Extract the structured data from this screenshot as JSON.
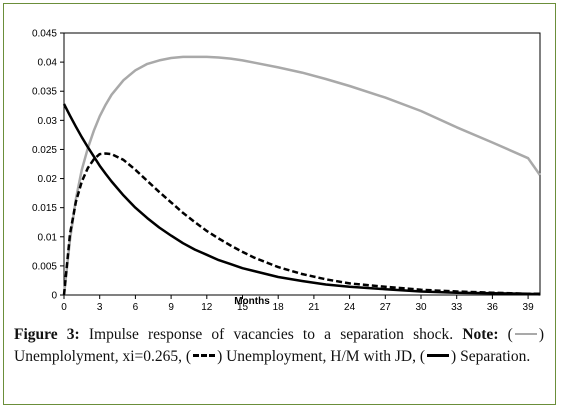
{
  "chart_data": {
    "type": "line",
    "xlabel": "Months",
    "ylabel": "",
    "xlim": [
      0,
      40
    ],
    "ylim": [
      0,
      0.045
    ],
    "xticks": [
      0,
      3,
      6,
      9,
      12,
      15,
      18,
      21,
      24,
      27,
      30,
      33,
      36,
      39
    ],
    "yticks": [
      0,
      0.005,
      0.01,
      0.015,
      0.02,
      0.025,
      0.03,
      0.035,
      0.04,
      0.045
    ],
    "ytick_labels": [
      "0",
      "0.005",
      "0.01",
      "0.015",
      "0.02",
      "0.025",
      "0.03",
      "0.035",
      "0.04",
      "0.045"
    ],
    "grid": false,
    "x": [
      0,
      0.5,
      1,
      1.5,
      2,
      2.5,
      3,
      3.5,
      4,
      5,
      6,
      7,
      8,
      9,
      10,
      11,
      12,
      13,
      14,
      15,
      16,
      18,
      20,
      22,
      24,
      27,
      30,
      33,
      36,
      39,
      40
    ],
    "series": [
      {
        "label": "Unemployment, xi=0.265",
        "color": "#a9a9a9",
        "style": "solid",
        "values": [
          0,
          0.0095,
          0.0165,
          0.0215,
          0.0252,
          0.0282,
          0.0307,
          0.0327,
          0.0344,
          0.0369,
          0.0386,
          0.0397,
          0.0403,
          0.0407,
          0.0409,
          0.0409,
          0.0409,
          0.0408,
          0.0406,
          0.0403,
          0.0399,
          0.0391,
          0.0382,
          0.0371,
          0.0359,
          0.0339,
          0.0316,
          0.0288,
          0.0262,
          0.0235,
          0.0206
        ]
      },
      {
        "label": "Unemployment, H/M with JD",
        "color": "#000000",
        "style": "dashed",
        "values": [
          0,
          0.0105,
          0.016,
          0.0195,
          0.0218,
          0.0233,
          0.0242,
          0.0243,
          0.0242,
          0.0232,
          0.0215,
          0.0196,
          0.0177,
          0.0159,
          0.0141,
          0.0125,
          0.011,
          0.0097,
          0.0085,
          0.0074,
          0.0064,
          0.0048,
          0.0036,
          0.0027,
          0.002,
          0.0014,
          0.0009,
          0.0006,
          0.0004,
          0.0002,
          0.0002
        ]
      },
      {
        "label": "Separation",
        "color": "#000000",
        "style": "solid",
        "values": [
          0.0328,
          0.0308,
          0.0289,
          0.0271,
          0.0254,
          0.0238,
          0.0222,
          0.0208,
          0.0195,
          0.0171,
          0.015,
          0.0132,
          0.0116,
          0.0102,
          0.0089,
          0.0078,
          0.0069,
          0.006,
          0.0053,
          0.0046,
          0.0041,
          0.0031,
          0.0024,
          0.0018,
          0.0014,
          0.001,
          0.0006,
          0.0004,
          0.0003,
          0.0002,
          0.0001
        ]
      }
    ]
  },
  "caption": {
    "figure_label": "Figure 3:",
    "text": " Impulse response of vacancies to a separation shock.",
    "note_label": "Note:",
    "paren_open": "(",
    "legend1": ") Unemplolyment, xi=0.265, (",
    "legend2": ") Unemployment, H/M with JD, (",
    "legend3": ") Separation."
  }
}
